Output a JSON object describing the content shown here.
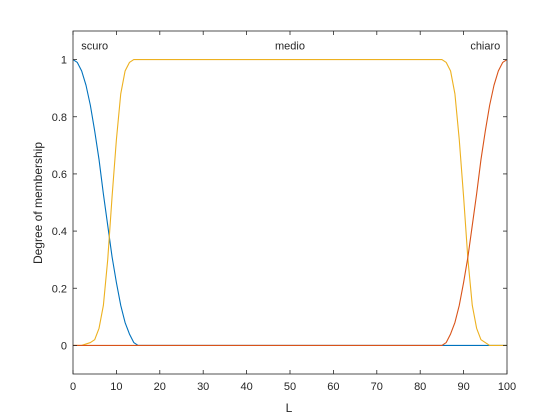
{
  "chart_data": {
    "type": "line",
    "xlabel": "L",
    "ylabel": "Degree of membership",
    "xlim": [
      0,
      100
    ],
    "ylim": [
      -0.1,
      1.1
    ],
    "xticks": [
      0,
      10,
      20,
      30,
      40,
      50,
      60,
      70,
      80,
      90,
      100
    ],
    "yticks": [
      0,
      0.2,
      0.4,
      0.6,
      0.8,
      1
    ],
    "ytick_labels": [
      "0",
      "0.2",
      "0.4",
      "0.6",
      "0.8",
      "1"
    ],
    "grid": false,
    "series": [
      {
        "name": "scuro",
        "color": "#0072bd",
        "x": [
          0,
          1,
          2,
          3,
          4,
          5,
          6,
          7,
          8,
          9,
          10,
          11,
          12,
          13,
          14,
          15,
          20,
          40,
          60,
          80,
          100
        ],
        "y": [
          1,
          0.99,
          0.96,
          0.91,
          0.84,
          0.75,
          0.65,
          0.53,
          0.42,
          0.31,
          0.22,
          0.14,
          0.08,
          0.04,
          0.01,
          0,
          0,
          0,
          0,
          0,
          0
        ]
      },
      {
        "name": "medio",
        "color": "#edb120",
        "x": [
          0,
          2,
          4,
          5,
          6,
          7,
          8,
          9,
          10,
          11,
          12,
          13,
          14,
          15,
          16,
          17,
          18,
          20,
          30,
          50,
          70,
          80,
          82,
          83,
          84,
          85,
          86,
          87,
          88,
          89,
          90,
          91,
          92,
          93,
          94,
          95,
          96,
          98,
          100
        ],
        "y": [
          0,
          0,
          0.01,
          0.02,
          0.06,
          0.14,
          0.3,
          0.52,
          0.72,
          0.88,
          0.96,
          0.99,
          1,
          1,
          1,
          1,
          1,
          1,
          1,
          1,
          1,
          1,
          1,
          1,
          1,
          1,
          0.99,
          0.96,
          0.88,
          0.72,
          0.52,
          0.3,
          0.14,
          0.06,
          0.02,
          0.01,
          0,
          0,
          0
        ]
      },
      {
        "name": "chiaro",
        "color": "#d95319",
        "x": [
          0,
          20,
          40,
          60,
          80,
          85,
          86,
          87,
          88,
          89,
          90,
          91,
          92,
          93,
          94,
          95,
          96,
          97,
          98,
          99,
          100
        ],
        "y": [
          0,
          0,
          0,
          0,
          0,
          0,
          0.01,
          0.04,
          0.08,
          0.14,
          0.22,
          0.31,
          0.42,
          0.53,
          0.65,
          0.75,
          0.84,
          0.91,
          0.96,
          0.99,
          1
        ]
      }
    ],
    "labels": [
      {
        "text": "scuro",
        "x": 5,
        "y": 1.05
      },
      {
        "text": "medio",
        "x": 50,
        "y": 1.05
      },
      {
        "text": "chiaro",
        "x": 95,
        "y": 1.05
      }
    ]
  }
}
